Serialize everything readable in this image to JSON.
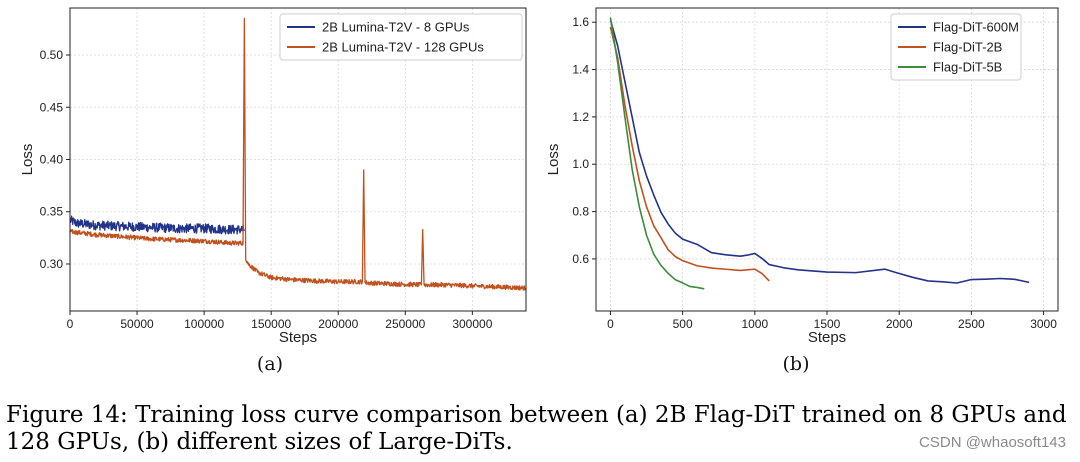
{
  "chart_data": [
    {
      "type": "line",
      "panel_label": "(a)",
      "xlabel": "Steps",
      "ylabel": "Loss",
      "xlim": [
        0,
        340000
      ],
      "ylim": [
        0.255,
        0.545
      ],
      "xticks": [
        0,
        50000,
        100000,
        150000,
        200000,
        250000,
        300000
      ],
      "yticks": [
        0.3,
        0.35,
        0.4,
        0.45,
        0.5
      ],
      "yticklabels": [
        "0.30",
        "0.35",
        "0.40",
        "0.45",
        "0.50"
      ],
      "grid": true,
      "legend_position": "top-right",
      "series": [
        {
          "name": "2B Lumina-T2V - 8 GPUs",
          "color": "#22338a",
          "x": [
            0,
            5000,
            20000,
            40000,
            60000,
            80000,
            100000,
            120000,
            130000
          ],
          "y": [
            0.342,
            0.339,
            0.337,
            0.336,
            0.335,
            0.334,
            0.334,
            0.333,
            0.333
          ]
        },
        {
          "name": "2B Lumina-T2V - 128 GPUs",
          "color": "#c0521e",
          "x": [
            0,
            20000,
            40000,
            60000,
            80000,
            100000,
            120000,
            129000,
            130000,
            131000,
            133000,
            140000,
            150000,
            165000,
            180000,
            200000,
            218000,
            219000,
            220000,
            240000,
            262000,
            263000,
            264000,
            280000,
            300000,
            320000,
            340000
          ],
          "y": [
            0.331,
            0.328,
            0.326,
            0.324,
            0.323,
            0.322,
            0.32,
            0.32,
            0.535,
            0.305,
            0.3,
            0.292,
            0.287,
            0.285,
            0.284,
            0.283,
            0.283,
            0.39,
            0.282,
            0.281,
            0.28,
            0.333,
            0.28,
            0.28,
            0.279,
            0.278,
            0.277
          ]
        }
      ]
    },
    {
      "type": "line",
      "panel_label": "(b)",
      "xlabel": "Steps",
      "ylabel": "Loss",
      "xlim": [
        -100,
        3100
      ],
      "ylim": [
        0.38,
        1.66
      ],
      "xticks": [
        0,
        500,
        1000,
        1500,
        2000,
        2500,
        3000
      ],
      "yticks": [
        0.6,
        0.8,
        1.0,
        1.2,
        1.4,
        1.6
      ],
      "yticklabels": [
        "0.6",
        "0.8",
        "1.0",
        "1.2",
        "1.4",
        "1.6"
      ],
      "grid": true,
      "legend_position": "top-right",
      "series": [
        {
          "name": "Flag-DiT-600M",
          "color": "#22338a",
          "x": [
            0,
            50,
            100,
            150,
            200,
            250,
            300,
            350,
            400,
            450,
            500,
            600,
            700,
            800,
            900,
            950,
            1000,
            1050,
            1100,
            1200,
            1300,
            1500,
            1700,
            1900,
            2000,
            2100,
            2200,
            2300,
            2400,
            2500,
            2600,
            2700,
            2800,
            2900
          ],
          "y": [
            1.61,
            1.5,
            1.35,
            1.2,
            1.05,
            0.95,
            0.87,
            0.8,
            0.75,
            0.71,
            0.68,
            0.66,
            0.63,
            0.62,
            0.61,
            0.615,
            0.62,
            0.6,
            0.58,
            0.56,
            0.55,
            0.545,
            0.54,
            0.555,
            0.535,
            0.52,
            0.51,
            0.505,
            0.5,
            0.51,
            0.515,
            0.52,
            0.51,
            0.5
          ]
        },
        {
          "name": "Flag-DiT-2B",
          "color": "#c0521e",
          "x": [
            0,
            50,
            100,
            150,
            200,
            250,
            300,
            350,
            400,
            450,
            500,
            600,
            700,
            800,
            900,
            1000,
            1050,
            1100
          ],
          "y": [
            1.58,
            1.45,
            1.25,
            1.08,
            0.93,
            0.82,
            0.74,
            0.69,
            0.64,
            0.61,
            0.59,
            0.57,
            0.56,
            0.555,
            0.55,
            0.56,
            0.54,
            0.51
          ]
        },
        {
          "name": "Flag-DiT-5B",
          "color": "#3c8c3c",
          "x": [
            0,
            50,
            100,
            150,
            200,
            250,
            300,
            350,
            400,
            450,
            500,
            550,
            600,
            650
          ],
          "y": [
            1.62,
            1.43,
            1.2,
            0.98,
            0.82,
            0.7,
            0.62,
            0.57,
            0.535,
            0.51,
            0.495,
            0.485,
            0.48,
            0.475
          ]
        }
      ]
    }
  ],
  "caption": "Figure 14: Training loss curve comparison between (a) 2B Flag-DiT trained on 8 GPUs and 128 GPUs, (b) different sizes of Large-DiTs.",
  "watermark": "CSDN @whaosoft143"
}
